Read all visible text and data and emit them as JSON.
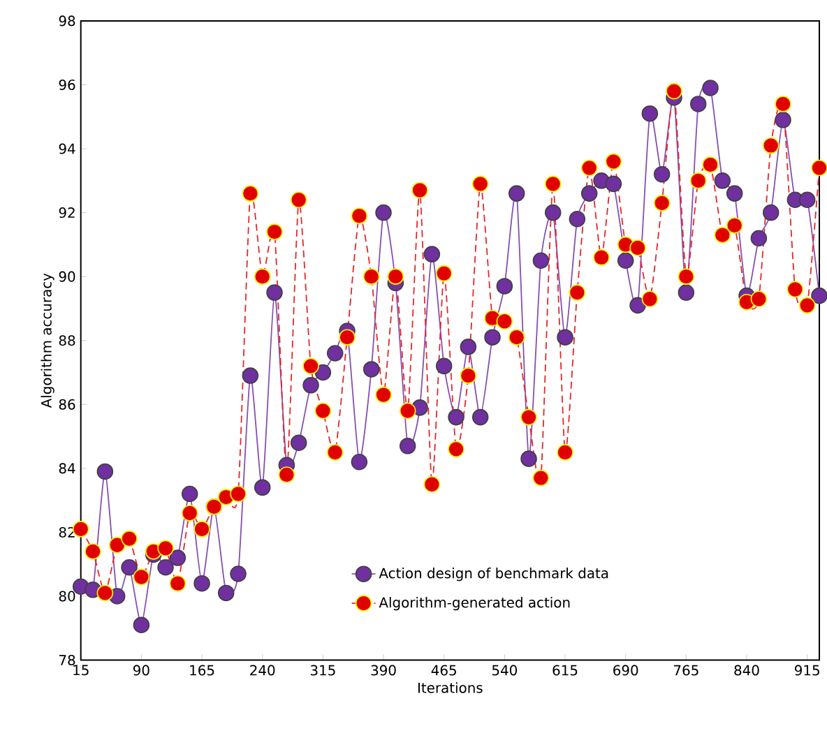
{
  "chart_data": {
    "type": "line",
    "xlabel": "Iterations",
    "ylabel": "Algorithm accuracy",
    "x": [
      15,
      30,
      45,
      60,
      75,
      90,
      105,
      120,
      135,
      150,
      165,
      180,
      195,
      210,
      225,
      240,
      255,
      270,
      285,
      300,
      315,
      330,
      345,
      360,
      375,
      390,
      405,
      420,
      435,
      450,
      465,
      480,
      495,
      510,
      525,
      540,
      555,
      570,
      585,
      600,
      615,
      630,
      645,
      660,
      675,
      690,
      705,
      720,
      735,
      750,
      765,
      780,
      795,
      810,
      825,
      840,
      855,
      870,
      885,
      900,
      915,
      930
    ],
    "series": [
      {
        "name": "Action design of benchmark data",
        "color": "#7030a0",
        "line_style": "solid",
        "values": [
          80.3,
          80.2,
          83.9,
          80.0,
          80.9,
          79.1,
          81.3,
          80.9,
          81.2,
          83.2,
          80.4,
          82.8,
          80.1,
          80.7,
          86.9,
          83.4,
          89.5,
          84.1,
          84.8,
          86.6,
          87.0,
          87.6,
          88.3,
          84.2,
          87.1,
          92.0,
          89.8,
          84.7,
          85.9,
          90.7,
          87.2,
          85.6,
          87.8,
          85.6,
          88.1,
          89.7,
          92.6,
          84.3,
          90.5,
          92.0,
          88.1,
          91.8,
          92.6,
          93.0,
          92.9,
          90.5,
          89.1,
          95.1,
          93.2,
          95.6,
          89.5,
          95.4,
          95.9,
          93.0,
          92.6,
          89.4,
          91.2,
          92.0,
          94.9,
          92.4,
          92.4,
          89.4
        ]
      },
      {
        "name": "Algorithm-generated action",
        "color": "#e00000",
        "line_style": "dashed",
        "values": [
          82.1,
          81.4,
          80.1,
          81.6,
          81.8,
          80.6,
          81.4,
          81.5,
          80.4,
          82.6,
          82.1,
          82.8,
          83.1,
          83.2,
          92.6,
          90.0,
          91.4,
          83.8,
          92.4,
          87.2,
          85.8,
          84.5,
          88.1,
          91.9,
          90.0,
          86.3,
          90.0,
          85.8,
          92.7,
          83.5,
          90.1,
          84.6,
          86.9,
          92.9,
          88.7,
          88.6,
          88.1,
          85.6,
          83.7,
          92.9,
          84.5,
          89.5,
          93.4,
          90.6,
          93.6,
          91.0,
          90.9,
          89.3,
          92.3,
          95.8,
          90.0,
          93.0,
          93.5,
          91.3,
          91.6,
          89.2,
          89.3,
          94.1,
          95.4,
          89.6,
          89.1,
          93.4
        ]
      }
    ],
    "xlim": [
      15,
      930
    ],
    "xticks": [
      15,
      90,
      165,
      240,
      315,
      390,
      465,
      540,
      615,
      690,
      765,
      840,
      915
    ],
    "ylim": [
      78,
      98
    ],
    "yticks": [
      78,
      80,
      82,
      84,
      86,
      88,
      90,
      92,
      94,
      96,
      98
    ],
    "marker": "circle",
    "grid": false,
    "legend": "bottom right"
  }
}
